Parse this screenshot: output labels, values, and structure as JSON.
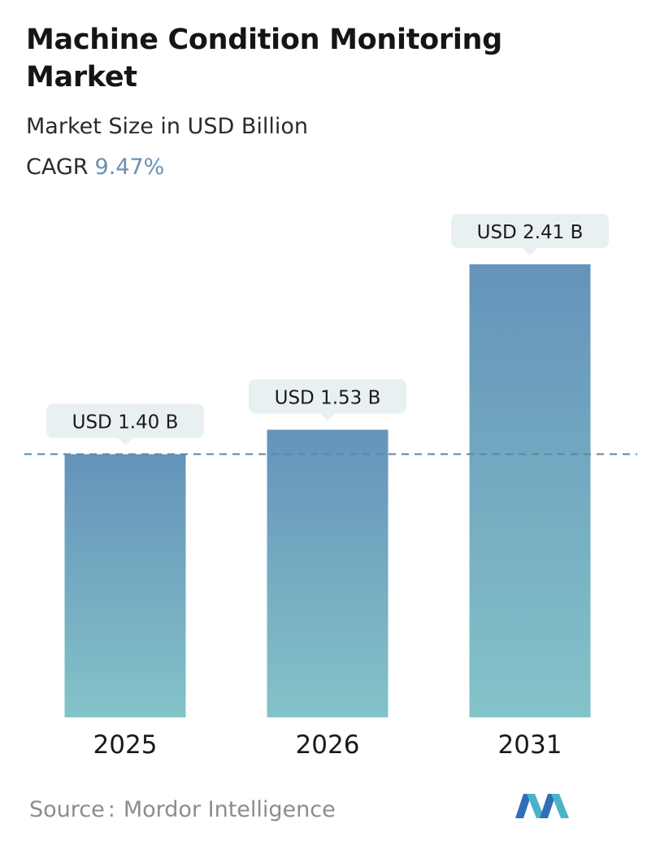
{
  "header": {
    "title": "Machine Condition Monitoring Market",
    "subtitle": "Market Size in USD Billion",
    "cagr_label": "CAGR",
    "cagr_value": "9.47%"
  },
  "chart_data": {
    "type": "bar",
    "categories": [
      "2025",
      "2026",
      "2031"
    ],
    "values": [
      1.4,
      1.53,
      2.41
    ],
    "data_labels": [
      "USD 1.40 B",
      "USD 1.53 B",
      "USD 2.41 B"
    ],
    "title": "Machine Condition Monitoring Market",
    "subtitle": "Market Size in USD Billion",
    "ylabel": "",
    "xlabel": "",
    "ylim": [
      0,
      2.41
    ],
    "grid": false,
    "reference_line_value": 1.4,
    "colors": {
      "bar_top": "#6593ba",
      "bar_bottom": "#84c3c9",
      "label_box": "#e9f0f1",
      "reference_line": "#5a88ab"
    }
  },
  "footer": {
    "source_label": "Source",
    "source_sep": ":",
    "source_value": "Mordor Intelligence",
    "logo_icon": "mordor-intelligence-logo-icon"
  }
}
